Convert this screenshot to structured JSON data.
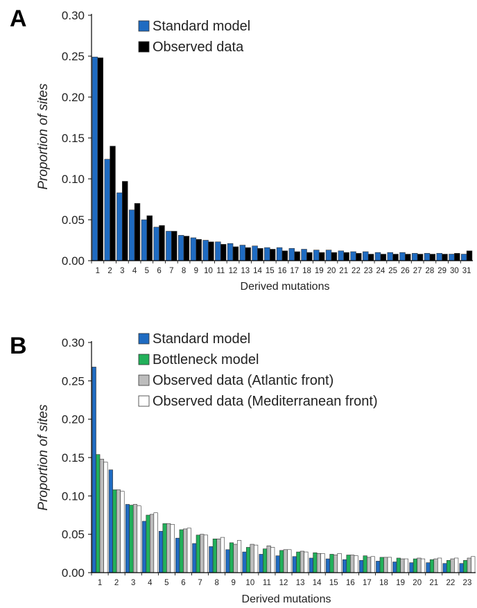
{
  "chart_data": [
    {
      "panel": "A",
      "type": "bar",
      "xlabel": "Derived mutations",
      "ylabel": "Proportion of sites",
      "ylim": [
        0,
        0.3
      ],
      "yticks": [
        "0.00",
        "0.05",
        "0.10",
        "0.15",
        "0.20",
        "0.25",
        "0.30"
      ],
      "legend_position": "top-right",
      "categories": [
        "1",
        "2",
        "3",
        "4",
        "5",
        "6",
        "7",
        "8",
        "9",
        "10",
        "11",
        "12",
        "13",
        "14",
        "15",
        "16",
        "17",
        "18",
        "19",
        "20",
        "21",
        "22",
        "23",
        "24",
        "25",
        "26",
        "27",
        "28",
        "29",
        "30",
        "31"
      ],
      "series": [
        {
          "name": "Standard model",
          "color": "#1F6BC1",
          "values": [
            0.249,
            0.124,
            0.083,
            0.062,
            0.05,
            0.041,
            0.036,
            0.031,
            0.028,
            0.025,
            0.023,
            0.021,
            0.019,
            0.018,
            0.016,
            0.016,
            0.015,
            0.014,
            0.013,
            0.013,
            0.012,
            0.011,
            0.011,
            0.01,
            0.01,
            0.01,
            0.009,
            0.009,
            0.009,
            0.008,
            0.008
          ]
        },
        {
          "name": "Observed data",
          "color": "#000000",
          "values": [
            0.248,
            0.14,
            0.097,
            0.07,
            0.055,
            0.043,
            0.036,
            0.03,
            0.026,
            0.023,
            0.02,
            0.017,
            0.016,
            0.015,
            0.014,
            0.012,
            0.011,
            0.01,
            0.01,
            0.01,
            0.01,
            0.009,
            0.008,
            0.008,
            0.008,
            0.008,
            0.008,
            0.008,
            0.008,
            0.009,
            0.012
          ]
        }
      ]
    },
    {
      "panel": "B",
      "type": "bar",
      "xlabel": "Derived mutations",
      "ylabel": "Proportion of sites",
      "ylim": [
        0,
        0.3
      ],
      "yticks": [
        "0.00",
        "0.05",
        "0.10",
        "0.15",
        "0.20",
        "0.25",
        "0.30"
      ],
      "legend_position": "top-right",
      "categories": [
        "1",
        "2",
        "3",
        "4",
        "5",
        "6",
        "7",
        "8",
        "9",
        "10",
        "11",
        "12",
        "13",
        "14",
        "15",
        "16",
        "17",
        "18",
        "19",
        "20",
        "21",
        "22",
        "23"
      ],
      "series": [
        {
          "name": "Standard model",
          "color": "#1F6BC1",
          "values": [
            0.268,
            0.134,
            0.089,
            0.067,
            0.054,
            0.045,
            0.038,
            0.034,
            0.03,
            0.027,
            0.024,
            0.022,
            0.021,
            0.019,
            0.018,
            0.017,
            0.016,
            0.015,
            0.014,
            0.013,
            0.013,
            0.012,
            0.012
          ]
        },
        {
          "name": "Bottleneck model",
          "color": "#22B05A",
          "values": [
            0.154,
            0.108,
            0.088,
            0.075,
            0.064,
            0.056,
            0.049,
            0.044,
            0.039,
            0.033,
            0.031,
            0.029,
            0.027,
            0.026,
            0.024,
            0.023,
            0.022,
            0.02,
            0.019,
            0.018,
            0.017,
            0.016,
            0.016
          ]
        },
        {
          "name": "Observed data (Atlantic front)",
          "color": "#BDBDBD",
          "values": [
            0.148,
            0.108,
            0.089,
            0.076,
            0.064,
            0.057,
            0.05,
            0.044,
            0.037,
            0.037,
            0.035,
            0.03,
            0.028,
            0.025,
            0.023,
            0.023,
            0.02,
            0.02,
            0.018,
            0.019,
            0.018,
            0.018,
            0.019
          ]
        },
        {
          "name": "Observed data (Mediterranean front)",
          "color": "#FFFFFF",
          "values": [
            0.144,
            0.106,
            0.087,
            0.078,
            0.063,
            0.058,
            0.049,
            0.046,
            0.042,
            0.036,
            0.033,
            0.03,
            0.027,
            0.025,
            0.025,
            0.022,
            0.021,
            0.02,
            0.018,
            0.018,
            0.019,
            0.019,
            0.021
          ]
        }
      ]
    }
  ],
  "panels": {
    "a": {
      "letter": "A"
    },
    "b": {
      "letter": "B"
    }
  },
  "colors": {
    "axis": "#000000",
    "bar_outline": "#333333"
  }
}
